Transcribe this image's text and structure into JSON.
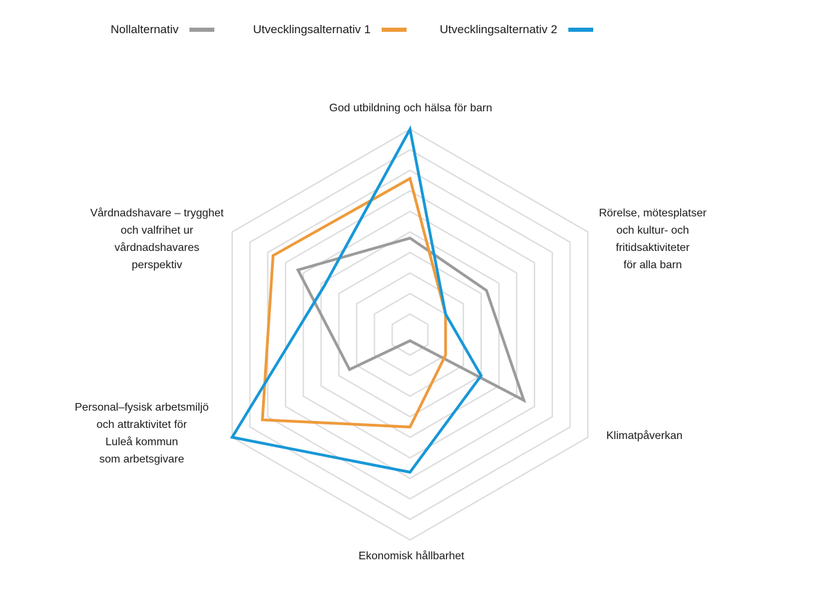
{
  "chart_data": {
    "type": "radar",
    "title": "",
    "axes": [
      {
        "label_lines": [
          "God utbildning och hälsa för barn"
        ]
      },
      {
        "label_lines": [
          "Rörelse, mötesplatser",
          "och kultur- och",
          "fritidsaktiviteter",
          "för alla barn"
        ]
      },
      {
        "label_lines": [
          "Klimatpåverkan"
        ]
      },
      {
        "label_lines": [
          "Ekonomisk hållbarhet"
        ]
      },
      {
        "label_lines": [
          "Personal–fysisk arbetsmiljö",
          "och attraktivitet för",
          "Luleå kommun",
          "som arbetsgivare"
        ]
      },
      {
        "label_lines": [
          "Vårdnadshavare – trygghet",
          "och valfrihet ur",
          "vårdnadshavares",
          "perspektiv"
        ]
      }
    ],
    "rings": 10,
    "range": [
      0,
      10
    ],
    "grid": true,
    "legend_position": "top",
    "series": [
      {
        "name": "Nollalternativ",
        "color": "#9b9b9b",
        "values": [
          4.7,
          4.3,
          6.4,
          0.3,
          3.4,
          6.3
        ]
      },
      {
        "name": "Utvecklingsalternativ 1",
        "color": "#ee9a3a",
        "values": [
          7.6,
          2.0,
          2.0,
          4.5,
          8.3,
          7.7
        ]
      },
      {
        "name": "Utvecklingsalternativ 2",
        "color": "#1797d7",
        "values": [
          10.0,
          2.0,
          4.0,
          6.7,
          10.0,
          4.8
        ]
      }
    ]
  }
}
